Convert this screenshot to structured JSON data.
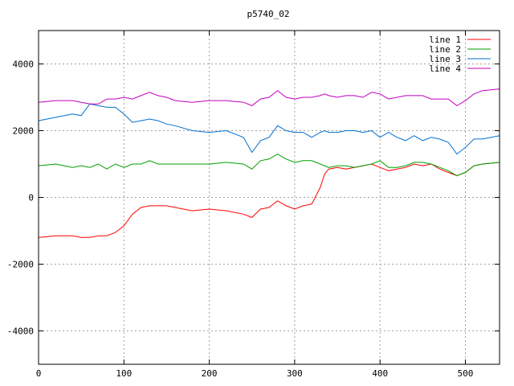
{
  "chart_data": {
    "type": "line",
    "title": "p5740_02",
    "xlim": [
      0,
      540
    ],
    "ylim": [
      -5000,
      5000
    ],
    "xticks": [
      0,
      100,
      200,
      300,
      400,
      500
    ],
    "yticks": [
      -4000,
      -2000,
      0,
      2000,
      4000
    ],
    "grid": true,
    "legend_position": "top-right",
    "x": [
      0,
      20,
      40,
      50,
      60,
      70,
      80,
      90,
      100,
      110,
      120,
      130,
      140,
      150,
      160,
      180,
      200,
      220,
      240,
      250,
      260,
      270,
      280,
      290,
      300,
      310,
      320,
      330,
      335,
      340,
      350,
      360,
      370,
      380,
      390,
      400,
      410,
      420,
      430,
      440,
      450,
      460,
      470,
      480,
      490,
      500,
      510,
      520,
      540
    ],
    "series": [
      {
        "name": "line 1",
        "color": "#ff0000",
        "values": [
          -1200,
          -1150,
          -1150,
          -1200,
          -1200,
          -1150,
          -1150,
          -1050,
          -850,
          -500,
          -300,
          -250,
          -250,
          -250,
          -300,
          -400,
          -350,
          -400,
          -500,
          -600,
          -350,
          -300,
          -100,
          -250,
          -350,
          -250,
          -200,
          300,
          700,
          850,
          900,
          850,
          900,
          950,
          1000,
          900,
          800,
          850,
          900,
          1000,
          950,
          1000,
          850,
          750,
          650,
          750,
          950,
          1000,
          1050
        ]
      },
      {
        "name": "line 2",
        "color": "#00a000",
        "values": [
          950,
          1000,
          900,
          950,
          900,
          1000,
          850,
          1000,
          900,
          1000,
          1000,
          1100,
          1000,
          1000,
          1000,
          1000,
          1000,
          1050,
          1000,
          850,
          1100,
          1150,
          1300,
          1150,
          1050,
          1100,
          1100,
          1000,
          950,
          900,
          950,
          950,
          900,
          950,
          1000,
          1100,
          900,
          900,
          950,
          1050,
          1050,
          1000,
          900,
          800,
          650,
          750,
          950,
          1000,
          1050
        ]
      },
      {
        "name": "line 3",
        "color": "#0070d0",
        "values": [
          2300,
          2400,
          2500,
          2450,
          2800,
          2750,
          2700,
          2700,
          2500,
          2250,
          2300,
          2350,
          2300,
          2200,
          2150,
          2000,
          1950,
          2000,
          1800,
          1350,
          1700,
          1800,
          2150,
          2000,
          1950,
          1950,
          1800,
          1950,
          2000,
          1950,
          1950,
          2000,
          2000,
          1950,
          2000,
          1800,
          1950,
          1800,
          1700,
          1850,
          1700,
          1800,
          1750,
          1650,
          1300,
          1500,
          1750,
          1750,
          1850
        ]
      },
      {
        "name": "line 4",
        "color": "#c000c0",
        "values": [
          2850,
          2900,
          2900,
          2850,
          2800,
          2800,
          2950,
          2950,
          3000,
          2950,
          3050,
          3150,
          3050,
          3000,
          2900,
          2850,
          2900,
          2900,
          2850,
          2750,
          2950,
          3000,
          3200,
          3000,
          2950,
          3000,
          3000,
          3050,
          3100,
          3050,
          3000,
          3050,
          3050,
          3000,
          3150,
          3100,
          2950,
          3000,
          3050,
          3050,
          3050,
          2950,
          2950,
          2950,
          2750,
          2900,
          3100,
          3200,
          3250
        ]
      }
    ]
  }
}
